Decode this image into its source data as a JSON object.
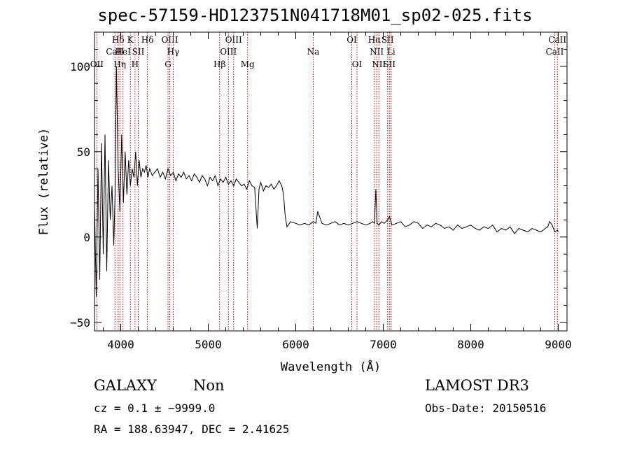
{
  "chart_data": {
    "type": "line",
    "title": "spec-57159-HD123751N041718M01_sp02-025.fits",
    "xlabel": "Wavelength (Å)",
    "ylabel": "Flux (relative)",
    "xlim": [
      3700,
      9100
    ],
    "ylim": [
      -55,
      120
    ],
    "xticks": [
      4000,
      5000,
      6000,
      7000,
      8000,
      9000
    ],
    "xtick_labels": [
      "4000",
      "5000",
      "6000",
      "7000",
      "8000",
      "9000"
    ],
    "yticks": [
      -50,
      0,
      50,
      100
    ],
    "ytick_labels": [
      "−50",
      "0",
      "50",
      "100"
    ],
    "grid": false,
    "line_markers": [
      {
        "label": "OII",
        "wavelength": 3727,
        "row": 3
      },
      {
        "label": "CaII",
        "wavelength": 3934,
        "row": 2
      },
      {
        "label": "Hδ",
        "wavelength": 3970,
        "row": 1
      },
      {
        "label": "Hη",
        "wavelength": 3990,
        "row": 3
      },
      {
        "label": "HeI",
        "wavelength": 4026,
        "row": 2
      },
      {
        "label": "K",
        "wavelength": 4110,
        "row": 1
      },
      {
        "label": "H",
        "wavelength": 4163,
        "row": 3
      },
      {
        "label": "SII",
        "wavelength": 4200,
        "row": 2
      },
      {
        "label": "Hδ",
        "wavelength": 4305,
        "row": 1
      },
      {
        "label": "G",
        "wavelength": 4540,
        "row": 3
      },
      {
        "label": "OIII",
        "wavelength": 4560,
        "row": 1
      },
      {
        "label": "Hγ",
        "wavelength": 4600,
        "row": 2
      },
      {
        "label": "Hβ",
        "wavelength": 5130,
        "row": 3
      },
      {
        "label": "OIII",
        "wavelength": 5230,
        "row": 2
      },
      {
        "label": "OIII",
        "wavelength": 5290,
        "row": 1
      },
      {
        "label": "Mg",
        "wavelength": 5450,
        "row": 3
      },
      {
        "label": "Na",
        "wavelength": 6200,
        "row": 2
      },
      {
        "label": "OI",
        "wavelength": 6640,
        "row": 1
      },
      {
        "label": "OI",
        "wavelength": 6700,
        "row": 3
      },
      {
        "label": "Hα",
        "wavelength": 6900,
        "row": 1
      },
      {
        "label": "NII",
        "wavelength": 6925,
        "row": 2
      },
      {
        "label": "NII",
        "wavelength": 6950,
        "row": 3
      },
      {
        "label": "SII",
        "wavelength": 7050,
        "row": 1
      },
      {
        "label": "Li",
        "wavelength": 7090,
        "row": 2
      },
      {
        "label": "SII",
        "wavelength": 7070,
        "row": 3
      },
      {
        "label": "CaII",
        "wavelength": 8960,
        "row": 2
      },
      {
        "label": "CaII",
        "wavelength": 8990,
        "row": 1
      }
    ],
    "series": [
      {
        "name": "spectrum",
        "x": [
          3700,
          3720,
          3740,
          3760,
          3780,
          3800,
          3820,
          3840,
          3860,
          3880,
          3900,
          3920,
          3935,
          3950,
          3970,
          3990,
          4010,
          4030,
          4050,
          4070,
          4090,
          4110,
          4130,
          4150,
          4170,
          4190,
          4210,
          4230,
          4250,
          4270,
          4290,
          4310,
          4330,
          4360,
          4390,
          4420,
          4450,
          4480,
          4510,
          4540,
          4570,
          4600,
          4630,
          4660,
          4690,
          4720,
          4750,
          4780,
          4810,
          4840,
          4870,
          4900,
          4930,
          4960,
          4990,
          5020,
          5050,
          5080,
          5110,
          5140,
          5170,
          5200,
          5230,
          5260,
          5290,
          5320,
          5350,
          5380,
          5410,
          5440,
          5470,
          5500,
          5530,
          5560,
          5580,
          5600,
          5630,
          5660,
          5690,
          5720,
          5750,
          5780,
          5810,
          5840,
          5860,
          5880,
          5900,
          5940,
          6000,
          6050,
          6100,
          6150,
          6200,
          6230,
          6250,
          6300,
          6350,
          6400,
          6450,
          6500,
          6550,
          6600,
          6650,
          6700,
          6750,
          6800,
          6850,
          6880,
          6900,
          6915,
          6930,
          6950,
          6980,
          7010,
          7050,
          7070,
          7100,
          7150,
          7200,
          7250,
          7300,
          7350,
          7400,
          7450,
          7500,
          7550,
          7600,
          7650,
          7700,
          7750,
          7800,
          7850,
          7900,
          7950,
          8000,
          8050,
          8100,
          8150,
          8200,
          8250,
          8300,
          8350,
          8400,
          8450,
          8500,
          8550,
          8600,
          8650,
          8700,
          8750,
          8800,
          8850,
          8880,
          8900,
          8930,
          8960,
          8990,
          9000
        ],
        "values": [
          20,
          -35,
          40,
          -25,
          55,
          -10,
          60,
          -20,
          45,
          10,
          30,
          -5,
          25,
          100,
          40,
          15,
          60,
          20,
          50,
          25,
          45,
          30,
          40,
          35,
          50,
          30,
          45,
          35,
          40,
          38,
          42,
          35,
          40,
          36,
          38,
          40,
          35,
          38,
          34,
          40,
          36,
          38,
          33,
          37,
          35,
          38,
          34,
          36,
          33,
          37,
          35,
          32,
          36,
          34,
          30,
          35,
          33,
          36,
          30,
          34,
          32,
          35,
          31,
          33,
          30,
          34,
          32,
          30,
          31,
          28,
          33,
          30,
          29,
          5,
          28,
          32,
          27,
          30,
          29,
          31,
          28,
          30,
          33,
          30,
          25,
          12,
          6,
          9,
          8,
          7,
          8,
          7,
          9,
          8,
          15,
          8,
          7,
          8,
          9,
          7,
          8,
          7,
          8,
          9,
          8,
          7,
          8,
          9,
          8,
          28,
          8,
          7,
          9,
          8,
          10,
          12,
          7,
          8,
          9,
          6,
          7,
          9,
          8,
          5,
          7,
          6,
          8,
          7,
          5,
          6,
          4,
          7,
          5,
          6,
          7,
          5,
          4,
          6,
          5,
          7,
          3,
          5,
          4,
          6,
          2,
          5,
          4,
          3,
          5,
          4,
          3,
          5,
          6,
          9,
          7,
          3,
          4,
          3
        ]
      }
    ],
    "info": {
      "class_label": "GALAXY",
      "subclass_label": "Non",
      "survey": "LAMOST DR3",
      "cz_text": "cz = 0.1 ± −9999.0",
      "obs_date": "Obs-Date: 20150516",
      "radec_text": "RA = 188.63947, DEC =    2.41625"
    }
  }
}
